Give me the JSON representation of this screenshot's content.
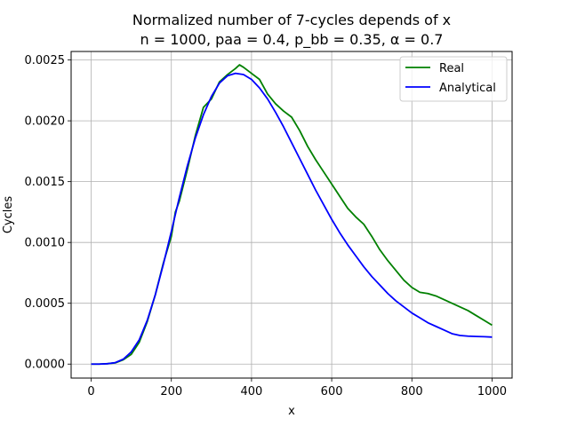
{
  "chart_data": {
    "type": "line",
    "title_line1": "Normalized number of 7-cycles depends of x",
    "title_line2": "n = 1000, paa = 0.4, p_bb = 0.35, α = 0.7",
    "xlabel": "x",
    "ylabel": "Cycles",
    "xlim": [
      -50,
      1050
    ],
    "ylim": [
      -0.000115,
      0.00257
    ],
    "xticks": [
      0,
      200,
      400,
      600,
      800,
      1000
    ],
    "xtick_labels": [
      "0",
      "200",
      "400",
      "600",
      "800",
      "1000"
    ],
    "yticks": [
      0.0,
      0.0005,
      0.001,
      0.0015,
      0.002,
      0.0025
    ],
    "ytick_labels": [
      "0.0000",
      "0.0005",
      "0.0010",
      "0.0015",
      "0.0020",
      "0.0025"
    ],
    "grid": true,
    "legend_position": "top-right",
    "series": [
      {
        "name": "Real",
        "color": "#008000",
        "x": [
          0,
          20,
          40,
          60,
          80,
          100,
          120,
          140,
          160,
          180,
          200,
          210,
          220,
          240,
          260,
          280,
          300,
          320,
          340,
          360,
          370,
          380,
          400,
          420,
          440,
          460,
          480,
          500,
          520,
          540,
          560,
          580,
          600,
          620,
          640,
          660,
          680,
          700,
          720,
          740,
          760,
          780,
          800,
          820,
          840,
          860,
          880,
          900,
          920,
          940,
          960,
          980,
          1000
        ],
        "y": [
          0.0,
          0.0,
          3e-06,
          1e-05,
          3.5e-05,
          8e-05,
          0.00018,
          0.00035,
          0.00057,
          0.00083,
          0.00105,
          0.00125,
          0.00134,
          0.0016,
          0.00188,
          0.00211,
          0.00218,
          0.00232,
          0.00238,
          0.00243,
          0.00246,
          0.00244,
          0.00239,
          0.00234,
          0.00222,
          0.00214,
          0.00208,
          0.00203,
          0.00192,
          0.00179,
          0.00168,
          0.00158,
          0.00148,
          0.00138,
          0.00128,
          0.00121,
          0.00115,
          0.00105,
          0.00094,
          0.00085,
          0.00077,
          0.00069,
          0.00063,
          0.00059,
          0.00058,
          0.00056,
          0.00053,
          0.0005,
          0.00047,
          0.00044,
          0.0004,
          0.00036,
          0.00032
        ]
      },
      {
        "name": "Analytical",
        "color": "#0000ff",
        "x": [
          0,
          20,
          40,
          60,
          80,
          100,
          120,
          140,
          160,
          180,
          200,
          220,
          240,
          260,
          280,
          300,
          320,
          340,
          360,
          380,
          400,
          420,
          440,
          460,
          480,
          500,
          520,
          540,
          560,
          580,
          600,
          620,
          640,
          660,
          680,
          700,
          720,
          740,
          760,
          780,
          800,
          820,
          840,
          860,
          880,
          900,
          920,
          940,
          960,
          980,
          1000
        ],
        "y": [
          0.0,
          0.0,
          3e-06,
          1.2e-05,
          4e-05,
          0.0001,
          0.0002,
          0.00036,
          0.00057,
          0.00082,
          0.00109,
          0.00137,
          0.00163,
          0.00186,
          0.00205,
          0.0022,
          0.00231,
          0.00237,
          0.00239,
          0.00238,
          0.00234,
          0.00227,
          0.00218,
          0.00207,
          0.00195,
          0.00182,
          0.00169,
          0.00156,
          0.00143,
          0.00131,
          0.00119,
          0.00108,
          0.00098,
          0.00089,
          0.0008,
          0.00072,
          0.00065,
          0.00058,
          0.00052,
          0.00047,
          0.00042,
          0.00038,
          0.00034,
          0.00031,
          0.00028,
          0.00025,
          0.000235,
          0.00023,
          0.000227,
          0.000225,
          0.000222
        ]
      }
    ]
  }
}
